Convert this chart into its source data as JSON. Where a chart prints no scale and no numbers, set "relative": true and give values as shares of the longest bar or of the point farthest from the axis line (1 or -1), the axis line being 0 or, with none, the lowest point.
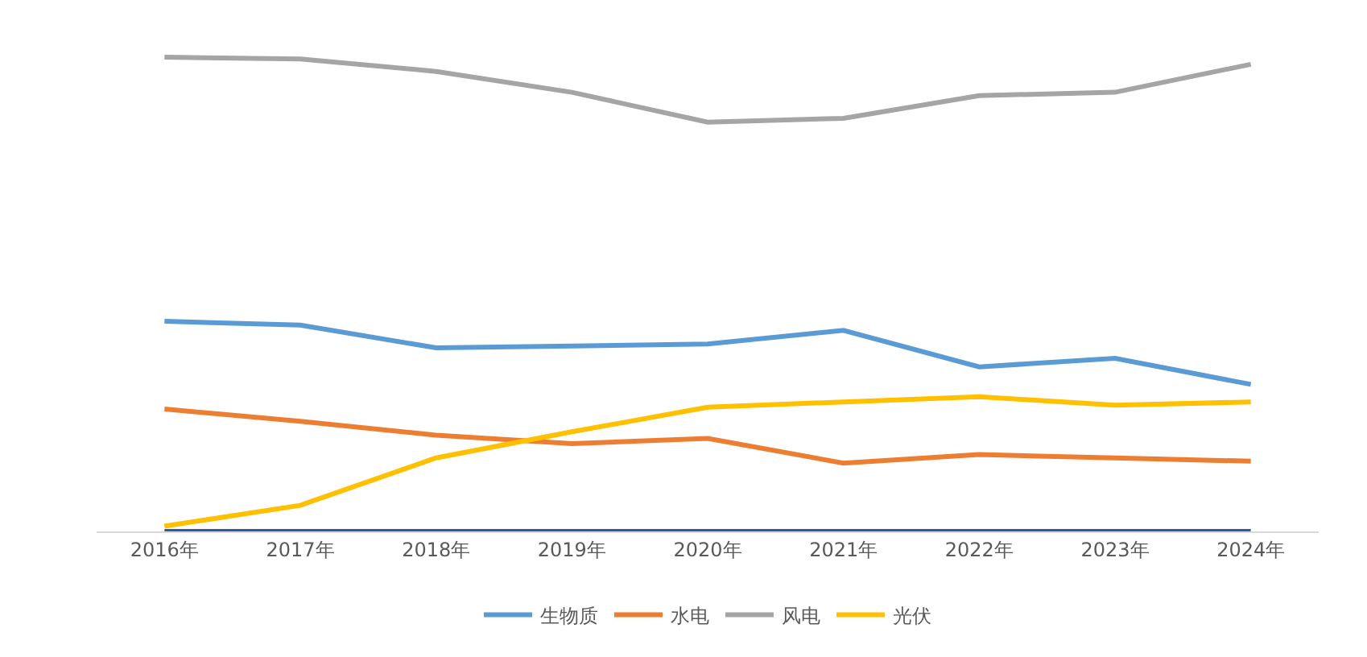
{
  "chart_data": {
    "type": "line",
    "relative": true,
    "categories": [
      "2016年",
      "2017年",
      "2018年",
      "2019年",
      "2020年",
      "2021年",
      "2022年",
      "2023年",
      "2024年"
    ],
    "series": [
      {
        "name": "生物质",
        "color": "#5b9bd5",
        "values": [
          0.443,
          0.435,
          0.387,
          0.391,
          0.395,
          0.424,
          0.347,
          0.365,
          0.31
        ]
      },
      {
        "name": "水电",
        "color": "#ed7d31",
        "values": [
          0.258,
          0.232,
          0.203,
          0.185,
          0.196,
          0.144,
          0.162,
          0.155,
          0.148
        ]
      },
      {
        "name": "风电",
        "color": "#a5a5a5",
        "values": [
          1.0,
          0.996,
          0.97,
          0.926,
          0.863,
          0.871,
          0.919,
          0.926,
          0.985
        ]
      },
      {
        "name": "光伏",
        "color": "#ffc000",
        "values": [
          0.011,
          0.055,
          0.155,
          0.21,
          0.262,
          0.273,
          0.284,
          0.266,
          0.273
        ]
      },
      {
        "color": "#2e5c9a",
        "values": [
          0,
          0,
          0,
          0,
          0,
          0,
          0,
          0,
          0
        ]
      }
    ],
    "legend": "bottom",
    "marker": "none",
    "line_style": "solid"
  }
}
